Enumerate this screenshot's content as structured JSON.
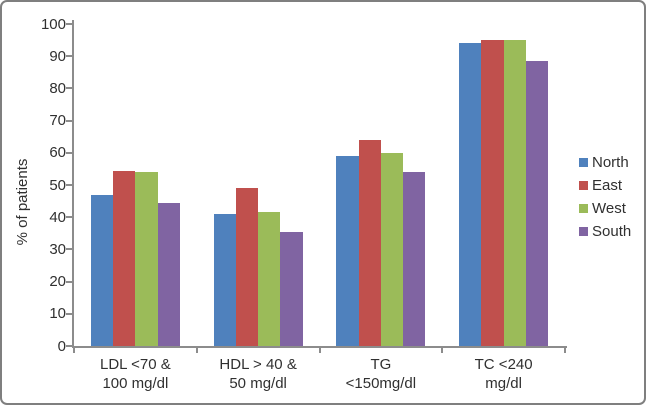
{
  "chart_data": {
    "type": "bar",
    "title": "",
    "ylabel": "% of patients",
    "xlabel": "",
    "ylim": [
      0,
      100
    ],
    "ytick_step": 10,
    "ytick_labels": [
      "0",
      "10",
      "20",
      "30",
      "40",
      "50",
      "60",
      "70",
      "80",
      "90",
      "100"
    ],
    "grid": false,
    "legend_position": "right",
    "categories": [
      [
        "LDL <70 &",
        "100 mg/dl"
      ],
      [
        "HDL > 40 &",
        "50 mg/dl"
      ],
      [
        "TG",
        "<150mg/dl"
      ],
      [
        "TC <240",
        "mg/dl"
      ]
    ],
    "series": [
      {
        "name": "North",
        "color": "#4f81bd",
        "values": [
          47,
          41,
          59,
          94
        ]
      },
      {
        "name": "East",
        "color": "#c0504d",
        "values": [
          54.5,
          49,
          64,
          95
        ]
      },
      {
        "name": "West",
        "color": "#9bbb59",
        "values": [
          54,
          41.5,
          60,
          95
        ]
      },
      {
        "name": "South",
        "color": "#8064a2",
        "values": [
          44.5,
          35.5,
          54,
          88.5
        ]
      }
    ]
  },
  "colors": {
    "axis": "#8c8c8c",
    "text": "#303030",
    "border": "#7f7f7f",
    "background": "#ffffff"
  }
}
